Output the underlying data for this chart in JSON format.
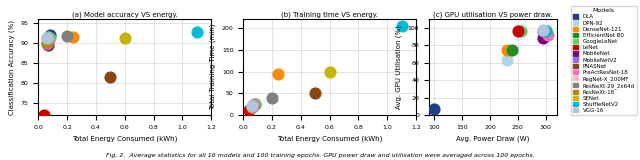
{
  "models": [
    "DLA",
    "DPN-92",
    "DenseNet-121",
    "EfficientNet B0",
    "GoogleLeNet",
    "LeNet",
    "MobileNet",
    "MobileNetV2",
    "PNASNet",
    "PreActResNet-18",
    "RegNet-X_200MF",
    "ResNeXt-29_2x64d",
    "ResNeXt-18",
    "SENet",
    "ShuffleNetV2",
    "VGG-16"
  ],
  "colors": [
    "#1f3e8c",
    "#add8e6",
    "#ff8c00",
    "#228b22",
    "#66cc66",
    "#cc0000",
    "#800080",
    "#9370db",
    "#8b4513",
    "#ff69b4",
    "#ffb6c1",
    "#808080",
    "#b8860b",
    "#c8b400",
    "#00bcd4",
    "#b0c4de"
  ],
  "plot1": {
    "energy": [
      0.08,
      0.07,
      0.24,
      0.06,
      0.08,
      0.04,
      0.07,
      0.06,
      0.5,
      0.07,
      0.06,
      0.2,
      0.06,
      0.6,
      1.1,
      0.06
    ],
    "accuracy": [
      92.0,
      91.5,
      91.6,
      91.2,
      91.3,
      72.0,
      89.5,
      89.8,
      81.5,
      90.5,
      91.0,
      91.8,
      90.0,
      91.2,
      92.8,
      91.2
    ],
    "xlabel": "Total Energy Consumed (kWh)",
    "ylabel": "Classification Accuracy (%)",
    "title": "(a) Model accuracy VS energy.",
    "xlim": [
      0,
      1.2
    ],
    "ylim": [
      72,
      96
    ]
  },
  "plot2": {
    "energy": [
      0.08,
      0.07,
      0.24,
      0.06,
      0.08,
      0.04,
      0.07,
      0.06,
      0.5,
      0.07,
      0.06,
      0.2,
      0.06,
      0.6,
      1.1,
      0.06
    ],
    "time": [
      25,
      22,
      95,
      18,
      26,
      12,
      22,
      19,
      50,
      23,
      19,
      40,
      18,
      100,
      205,
      20
    ],
    "xlabel": "Total Energy Consumed (kWh)",
    "ylabel": "Total Training Time (min)",
    "title": "(b) Training time VS energy.",
    "xlim": [
      0,
      1.2
    ],
    "ylim": [
      0,
      220
    ]
  },
  "plot3": {
    "power": [
      100,
      230,
      230,
      240,
      255,
      250,
      295,
      300,
      300,
      305,
      300,
      295,
      300,
      300,
      300,
      295
    ],
    "utilisation": [
      7,
      63,
      75,
      75,
      96,
      96,
      88,
      95,
      97,
      92,
      96,
      97,
      96,
      97,
      97,
      98
    ],
    "xlabel": "Avg. Power Draw (W)",
    "ylabel": "Avg. GPU Utilisation (%)",
    "title": "(c) GPU utilisation VS power draw.",
    "xlim": [
      90,
      320
    ],
    "ylim": [
      0,
      110
    ]
  },
  "figure_caption": "Fig. 2.  Average statistics for all 16 models and 100 training epochs. GPU power draw and utilisation were averaged across 100 epochs.",
  "marker_size": 60
}
